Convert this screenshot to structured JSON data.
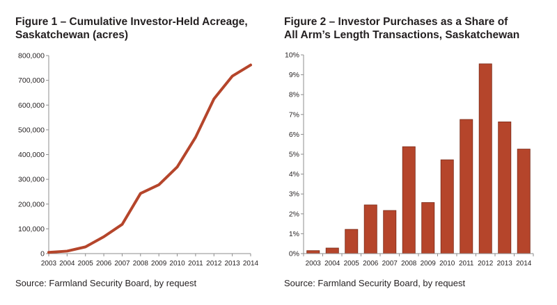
{
  "figures": [
    {
      "title_line1": "Figure 1 – Cumulative Investor-Held Acreage,",
      "title_line2": "Saskatchewan (acres)",
      "source": "Source: Farmland Security Board, by request"
    },
    {
      "title_line1": "Figure 2 – Investor Purchases as a Share of",
      "title_line2": "All Arm’s Length Transactions, Saskatchewan",
      "source": "Source: Farmland Security Board, by request"
    }
  ],
  "chart_data": [
    {
      "type": "line",
      "title": "Figure 1 – Cumulative Investor-Held Acreage, Saskatchewan (acres)",
      "x": [
        "2003",
        "2004",
        "2005",
        "2006",
        "2007",
        "2008",
        "2009",
        "2010",
        "2011",
        "2012",
        "2013",
        "2014"
      ],
      "series": [
        {
          "values": [
            5000,
            10000,
            27000,
            68000,
            118000,
            243000,
            278000,
            350000,
            470000,
            625000,
            717000,
            762000
          ]
        }
      ],
      "yticks": [
        "0",
        "100,000",
        "200,000",
        "300,000",
        "400,000",
        "500,000",
        "600,000",
        "700,000",
        "800,000"
      ],
      "ylim": [
        0,
        800000
      ],
      "grid": false,
      "color": "#b5452b"
    },
    {
      "type": "bar",
      "title": "Figure 2 – Investor Purchases as a Share of All Arm’s Length Transactions, Saskatchewan",
      "categories": [
        "2003",
        "2004",
        "2005",
        "2006",
        "2007",
        "2008",
        "2009",
        "2010",
        "2011",
        "2012",
        "2013",
        "2014"
      ],
      "values": [
        0.15,
        0.28,
        1.22,
        2.45,
        2.17,
        5.38,
        2.57,
        4.72,
        6.75,
        9.55,
        6.63,
        5.26
      ],
      "yticks": [
        "0%",
        "1%",
        "2%",
        "3%",
        "4%",
        "5%",
        "6%",
        "7%",
        "8%",
        "9%",
        "10%"
      ],
      "ylim": [
        0,
        10
      ],
      "grid": false,
      "color": "#b5452b",
      "edge_color": "#7a2a18"
    }
  ]
}
